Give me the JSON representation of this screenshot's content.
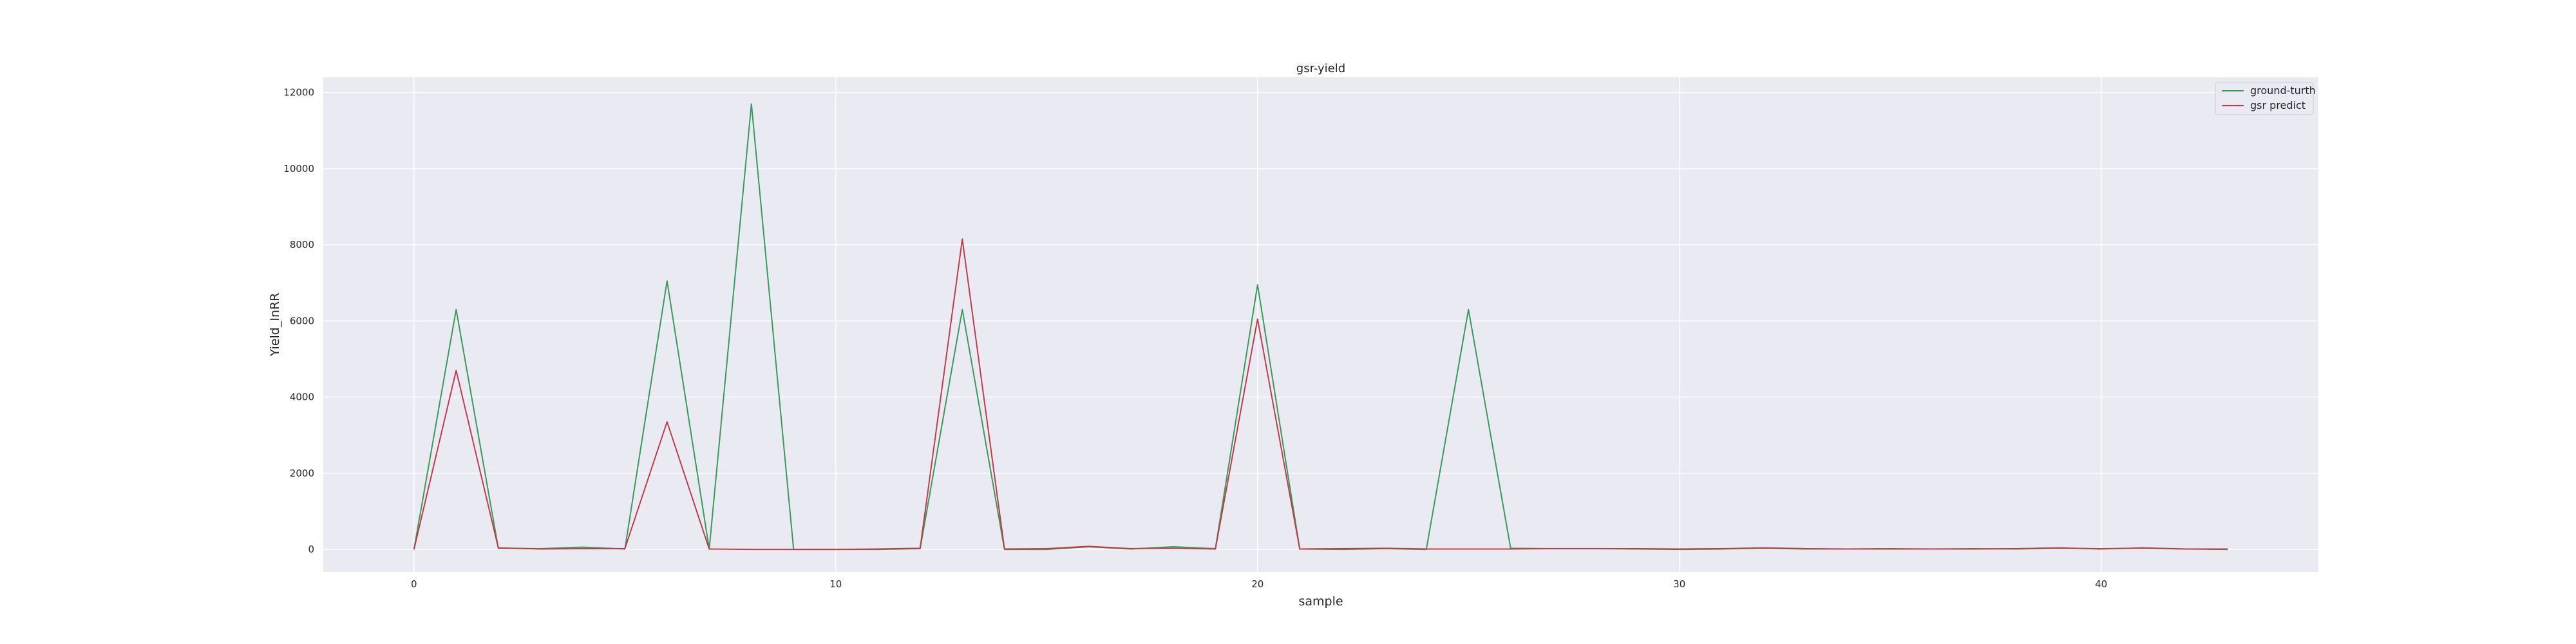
{
  "chart_data": {
    "type": "line",
    "title": "gsr-yield",
    "xlabel": "sample",
    "ylabel": "Yield_InRR",
    "xlim": [
      -2.15,
      45.15
    ],
    "ylim": [
      -590,
      12400
    ],
    "x_ticks": [
      0,
      10,
      20,
      30,
      40
    ],
    "y_ticks": [
      0,
      2000,
      4000,
      6000,
      8000,
      10000,
      12000
    ],
    "grid": true,
    "legend_position": "top-right",
    "background_color": "#eaeaf2",
    "grid_color": "#ffffff",
    "x": [
      0,
      1,
      2,
      3,
      4,
      5,
      6,
      7,
      8,
      9,
      10,
      11,
      12,
      13,
      14,
      15,
      16,
      17,
      18,
      19,
      20,
      21,
      22,
      23,
      24,
      25,
      26,
      27,
      28,
      29,
      30,
      31,
      32,
      33,
      34,
      35,
      36,
      37,
      38,
      39,
      40,
      41,
      42,
      43
    ],
    "series": [
      {
        "name": "ground-turth",
        "color": "#3a9a5c",
        "values": [
          0,
          6300,
          30,
          20,
          60,
          10,
          7050,
          10,
          11700,
          0,
          0,
          0,
          20,
          6300,
          0,
          0,
          70,
          10,
          70,
          20,
          6950,
          10,
          0,
          20,
          0,
          6300,
          30,
          20,
          20,
          10,
          0,
          10,
          30,
          10,
          10,
          20,
          10,
          20,
          10,
          30,
          20,
          30,
          10,
          0
        ]
      },
      {
        "name": "gsr predict",
        "color": "#c23a4b",
        "values": [
          0,
          4700,
          40,
          10,
          20,
          20,
          3350,
          10,
          0,
          0,
          0,
          10,
          30,
          8150,
          10,
          20,
          80,
          20,
          30,
          10,
          6050,
          10,
          20,
          30,
          10,
          10,
          10,
          20,
          20,
          20,
          10,
          20,
          40,
          20,
          10,
          10,
          10,
          10,
          20,
          40,
          10,
          40,
          10,
          10
        ]
      }
    ]
  }
}
